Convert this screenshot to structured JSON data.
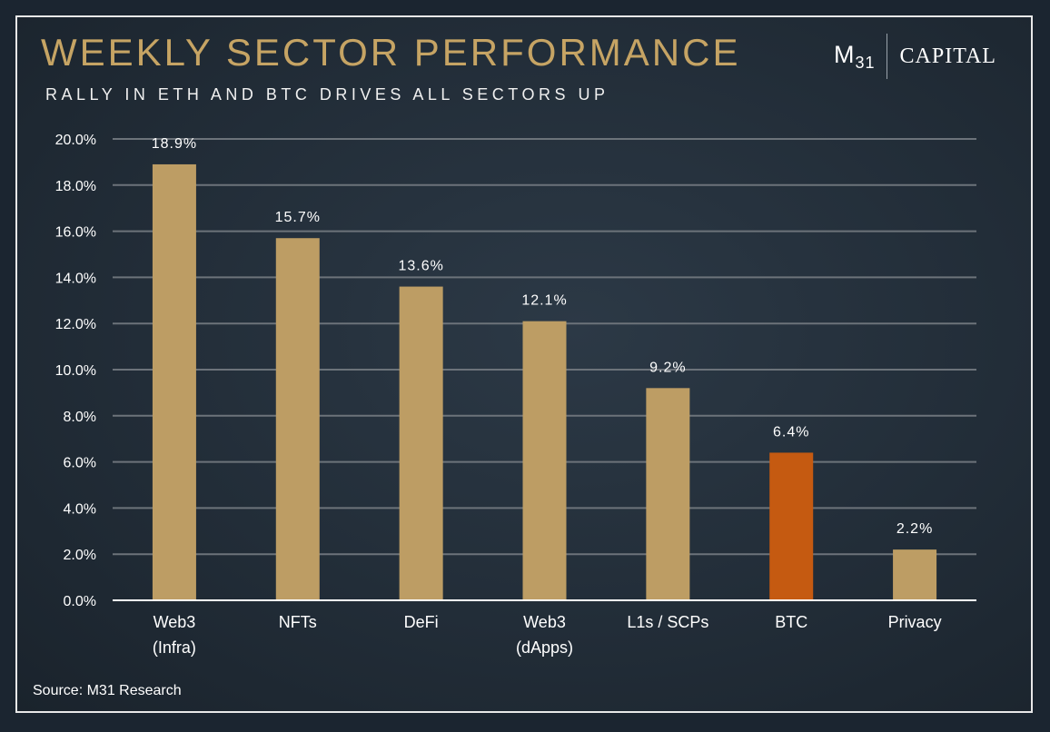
{
  "title": "WEEKLY SECTOR PERFORMANCE",
  "subtitle": "RALLY IN ETH AND BTC DRIVES ALL SECTORS UP",
  "logo": {
    "mark": "M",
    "mark_sub": "31",
    "word": "CAPITAL"
  },
  "source": "Source: M31 Research",
  "colors": {
    "title": "#c6a464",
    "bar_default": "#bd9d64",
    "bar_highlight": "#c55a11",
    "gridline": "#6c737a",
    "axis": "#ffffff"
  },
  "chart_data": {
    "type": "bar",
    "title": "WEEKLY SECTOR PERFORMANCE",
    "subtitle": "RALLY IN ETH AND BTC DRIVES ALL SECTORS UP",
    "categories": [
      [
        "Web3",
        "(Infra)"
      ],
      [
        "NFTs"
      ],
      [
        "DeFi"
      ],
      [
        "Web3",
        "(dApps)"
      ],
      [
        "L1s / SCPs"
      ],
      [
        "BTC"
      ],
      [
        "Privacy"
      ]
    ],
    "values": [
      18.9,
      15.7,
      13.6,
      12.1,
      9.2,
      6.4,
      2.2
    ],
    "data_labels": [
      "18.9%",
      "15.7%",
      "13.6%",
      "12.1%",
      "9.2%",
      "6.4%",
      "2.2%"
    ],
    "highlight": [
      "BTC"
    ],
    "ylim": [
      0,
      20
    ],
    "yticks": [
      "0.0%",
      "2.0%",
      "4.0%",
      "6.0%",
      "8.0%",
      "10.0%",
      "12.0%",
      "14.0%",
      "16.0%",
      "18.0%",
      "20.0%"
    ],
    "ytick_values": [
      0,
      2,
      4,
      6,
      8,
      10,
      12,
      14,
      16,
      18,
      20
    ],
    "grid": true,
    "legend": "none",
    "xlabel": "",
    "ylabel": ""
  }
}
